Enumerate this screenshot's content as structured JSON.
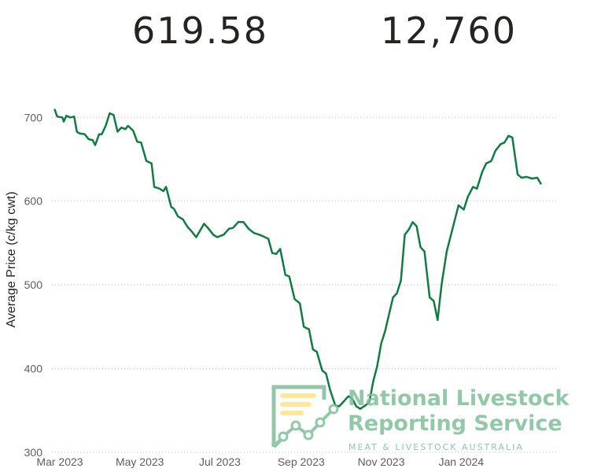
{
  "kpis": {
    "average_price": "619.58",
    "head_count": "12,760"
  },
  "watermark": {
    "line1": "National Livestock",
    "line2": "Reporting Service",
    "line3": "MEAT & LIVESTOCK AUSTRALIA",
    "brand_color": "#7fbf9a"
  },
  "chart_data": {
    "type": "line",
    "title": "",
    "xlabel": "",
    "ylabel": "Average Price (c/kg cwt)",
    "x_ticks": [
      "Mar 2023",
      "May 2023",
      "Jul 2023",
      "Sep 2023",
      "Nov 2023",
      "Jan 2024"
    ],
    "y_ticks": [
      300,
      400,
      500,
      600,
      700
    ],
    "ylim": [
      300,
      720
    ],
    "xlim": [
      "2023-03-01",
      "2024-03-20"
    ],
    "grid": true,
    "line_color": "#107c41",
    "series": [
      {
        "name": "",
        "x": [
          "2023-03-03",
          "2023-03-05",
          "2023-03-09",
          "2023-03-10",
          "2023-03-12",
          "2023-03-15",
          "2023-03-18",
          "2023-03-20",
          "2023-03-22",
          "2023-03-26",
          "2023-03-29",
          "2023-04-01",
          "2023-04-03",
          "2023-04-06",
          "2023-04-08",
          "2023-04-11",
          "2023-04-14",
          "2023-04-17",
          "2023-04-20",
          "2023-04-23",
          "2023-04-26",
          "2023-04-28",
          "2023-05-02",
          "2023-05-05",
          "2023-05-08",
          "2023-05-12",
          "2023-05-16",
          "2023-05-18",
          "2023-05-22",
          "2023-05-25",
          "2023-05-27",
          "2023-05-31",
          "2023-06-02",
          "2023-06-05",
          "2023-06-09",
          "2023-06-12",
          "2023-06-16",
          "2023-06-19",
          "2023-06-22",
          "2023-06-25",
          "2023-06-28",
          "2023-07-02",
          "2023-07-05",
          "2023-07-10",
          "2023-07-14",
          "2023-07-17",
          "2023-07-21",
          "2023-07-25",
          "2023-07-29",
          "2023-08-02",
          "2023-08-06",
          "2023-08-09",
          "2023-08-13",
          "2023-08-16",
          "2023-08-19",
          "2023-08-22",
          "2023-08-26",
          "2023-08-29",
          "2023-09-02",
          "2023-09-06",
          "2023-09-09",
          "2023-09-13",
          "2023-09-16",
          "2023-09-19",
          "2023-09-23",
          "2023-09-26",
          "2023-09-29",
          "2023-10-03",
          "2023-10-06",
          "2023-10-09",
          "2023-10-13",
          "2023-10-16",
          "2023-10-19",
          "2023-10-22",
          "2023-10-26",
          "2023-10-29",
          "2023-11-01",
          "2023-11-04",
          "2023-11-07",
          "2023-11-10",
          "2023-11-13",
          "2023-11-16",
          "2023-11-19",
          "2023-11-22",
          "2023-11-25",
          "2023-11-28",
          "2023-12-01",
          "2023-12-04",
          "2023-12-07",
          "2023-12-10",
          "2023-12-14",
          "2023-12-17",
          "2023-12-20",
          "2023-12-23",
          "2023-12-27",
          "2024-01-05",
          "2024-01-09",
          "2024-01-12",
          "2024-01-16",
          "2024-01-19",
          "2024-01-23",
          "2024-01-26",
          "2024-01-30",
          "2024-02-02",
          "2024-02-06",
          "2024-02-09",
          "2024-02-12",
          "2024-02-15",
          "2024-02-19",
          "2024-02-22",
          "2024-02-26",
          "2024-03-01",
          "2024-03-05",
          "2024-03-08"
        ],
        "y": [
          710,
          701,
          700,
          695,
          702,
          700,
          701,
          683,
          681,
          680,
          674,
          673,
          667,
          680,
          680,
          690,
          705,
          703,
          683,
          688,
          686,
          690,
          684,
          671,
          670,
          648,
          645,
          617,
          615,
          612,
          617,
          593,
          591,
          582,
          578,
          570,
          563,
          557,
          565,
          573,
          568,
          560,
          557,
          560,
          567,
          568,
          575,
          575,
          567,
          562,
          560,
          558,
          555,
          538,
          537,
          543,
          512,
          510,
          483,
          478,
          450,
          447,
          423,
          420,
          398,
          394,
          375,
          356,
          355,
          360,
          367,
          364,
          355,
          352,
          356,
          360,
          385,
          403,
          430,
          445,
          465,
          485,
          490,
          505,
          560,
          566,
          575,
          570,
          545,
          540,
          485,
          481,
          458,
          500,
          540,
          595,
          590,
          605,
          617,
          615,
          635,
          645,
          648,
          660,
          668,
          670,
          678,
          676,
          632,
          628,
          629,
          627,
          628,
          620
        ]
      }
    ]
  }
}
